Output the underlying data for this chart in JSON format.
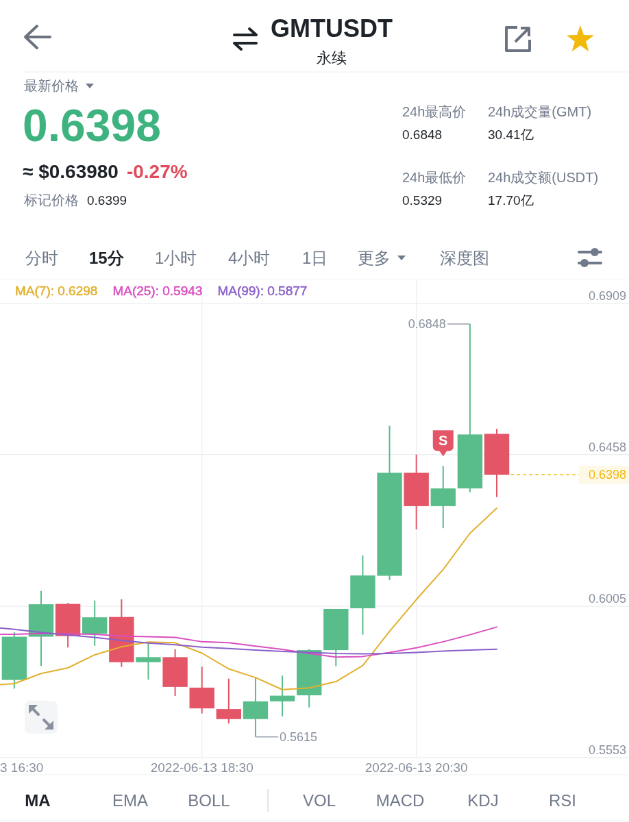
{
  "chart_data": [
    {
      "type": "other",
      "title": "GMTUSDT",
      "subtitle": "永续",
      "annotations": [
        "最新价格",
        "0.6398",
        "≈ $0.63980",
        "-0.27%",
        "标记价格",
        "0.6399",
        "24h最高价",
        "0.6848",
        "24h成交量(GMT)",
        "30.41亿",
        "24h最低价",
        "0.5329",
        "24h成交额(USDT)",
        "17.70亿",
        "分时",
        "15分",
        "1小时",
        "4小时",
        "1日",
        "更多",
        "深度图"
      ]
    },
    {
      "type": "candlestick",
      "x": [
        "2022-06-13T16:45",
        "2022-06-13T17:00",
        "2022-06-13T17:15",
        "2022-06-13T17:30",
        "2022-06-13T17:45",
        "2022-06-13T18:00",
        "2022-06-13T18:15",
        "2022-06-13T18:30",
        "2022-06-13T18:45",
        "2022-06-13T19:00",
        "2022-06-13T19:15",
        "2022-06-13T19:30",
        "2022-06-13T19:45",
        "2022-06-13T20:00",
        "2022-06-13T20:15",
        "2022-06-13T20:30",
        "2022-06-13T20:45",
        "2022-06-13T21:00",
        "2022-06-13T21:15"
      ],
      "ohlc": [
        [
          0.5785,
          0.5928,
          0.5759,
          0.5914
        ],
        [
          0.5914,
          0.6051,
          0.5827,
          0.6011
        ],
        [
          0.6012,
          0.6015,
          0.5882,
          0.5916
        ],
        [
          0.5923,
          0.6022,
          0.5887,
          0.5972
        ],
        [
          0.5973,
          0.6026,
          0.5824,
          0.5838
        ],
        [
          0.5838,
          0.5895,
          0.5786,
          0.5853
        ],
        [
          0.5853,
          0.5877,
          0.5737,
          0.5764
        ],
        [
          0.5762,
          0.5824,
          0.5685,
          0.57
        ],
        [
          0.5698,
          0.5789,
          0.5655,
          0.5668
        ],
        [
          0.5668,
          0.5792,
          0.5615,
          0.5721
        ],
        [
          0.5721,
          0.5798,
          0.5676,
          0.5738
        ],
        [
          0.5739,
          0.5877,
          0.5703,
          0.5874
        ],
        [
          0.5874,
          0.5997,
          0.5826,
          0.5997
        ],
        [
          0.5999,
          0.6157,
          0.592,
          0.6097
        ],
        [
          0.6096,
          0.6544,
          0.6083,
          0.6404
        ],
        [
          0.6404,
          0.6458,
          0.6235,
          0.6304
        ],
        [
          0.6304,
          0.6424,
          0.6238,
          0.6357
        ],
        [
          0.6357,
          0.6848,
          0.6346,
          0.6518
        ],
        [
          0.652,
          0.6535,
          0.6331,
          0.6398
        ]
      ],
      "colors": [
        "#58bd8b",
        "#58bd8b",
        "#e35567",
        "#58bd8b",
        "#e35567",
        "#58bd8b",
        "#e35567",
        "#e35567",
        "#e35567",
        "#58bd8b",
        "#58bd8b",
        "#58bd8b",
        "#58bd8b",
        "#58bd8b",
        "#58bd8b",
        "#e35567",
        "#58bd8b",
        "#58bd8b",
        "#e35567"
      ],
      "series": [
        {
          "name": "MA(7): 0.6298",
          "color": "#e2b02e",
          "type": "line",
          "x": [
            "2022-06-13T16:37",
            "2022-06-13T16:45",
            "2022-06-13T17:00",
            "2022-06-13T17:15",
            "2022-06-13T17:30",
            "2022-06-13T17:45",
            "2022-06-13T18:00",
            "2022-06-13T18:15",
            "2022-06-13T18:30",
            "2022-06-13T18:45",
            "2022-06-13T19:00",
            "2022-06-13T19:15",
            "2022-06-13T19:30",
            "2022-06-13T19:45",
            "2022-06-13T20:00",
            "2022-06-13T20:15",
            "2022-06-13T20:30",
            "2022-06-13T20:45",
            "2022-06-13T21:00",
            "2022-06-13T21:15"
          ],
          "values": [
            0.5771,
            0.5774,
            0.5804,
            0.5821,
            0.586,
            0.5884,
            0.5898,
            0.5896,
            0.5865,
            0.5818,
            0.5792,
            0.5756,
            0.5761,
            0.578,
            0.5828,
            0.593,
            0.6025,
            0.6115,
            0.6223,
            0.6298
          ]
        },
        {
          "name": "MA(25): 0.5943",
          "color": "#d94fbf",
          "type": "line",
          "x": [
            "2022-06-13T16:37",
            "2022-06-13T16:45",
            "2022-06-13T17:00",
            "2022-06-13T17:15",
            "2022-06-13T17:30",
            "2022-06-13T17:45",
            "2022-06-13T18:00",
            "2022-06-13T18:15",
            "2022-06-13T18:30",
            "2022-06-13T18:45",
            "2022-06-13T19:00",
            "2022-06-13T19:15",
            "2022-06-13T19:30",
            "2022-06-13T19:45",
            "2022-06-13T20:00",
            "2022-06-13T20:15",
            "2022-06-13T20:30",
            "2022-06-13T20:45",
            "2022-06-13T21:00",
            "2022-06-13T21:15"
          ],
          "values": [
            0.5921,
            0.5921,
            0.5924,
            0.5923,
            0.5921,
            0.5916,
            0.5914,
            0.5912,
            0.5899,
            0.5896,
            0.5886,
            0.5876,
            0.5864,
            0.5853,
            0.5855,
            0.5867,
            0.5881,
            0.5899,
            0.592,
            0.5943
          ]
        },
        {
          "name": "MA(99): 0.5877",
          "color": "#8a5fc9",
          "type": "line",
          "x": [
            "2022-06-13T16:37",
            "2022-06-13T16:45",
            "2022-06-13T17:00",
            "2022-06-13T17:15",
            "2022-06-13T17:30",
            "2022-06-13T17:45",
            "2022-06-13T18:00",
            "2022-06-13T18:15",
            "2022-06-13T18:30",
            "2022-06-13T18:45",
            "2022-06-13T19:00",
            "2022-06-13T19:15",
            "2022-06-13T19:30",
            "2022-06-13T19:45",
            "2022-06-13T20:00",
            "2022-06-13T20:15",
            "2022-06-13T20:30",
            "2022-06-13T20:45",
            "2022-06-13T21:00",
            "2022-06-13T21:15"
          ],
          "values": [
            0.594,
            0.5936,
            0.5927,
            0.5919,
            0.5912,
            0.5903,
            0.5895,
            0.589,
            0.5883,
            0.5879,
            0.5874,
            0.587,
            0.5867,
            0.5864,
            0.5863,
            0.5864,
            0.5867,
            0.5871,
            0.5874,
            0.5877
          ]
        }
      ],
      "xlim": [
        "2022-06-13T16:37",
        "2022-06-13T22:29"
      ],
      "ylim": [
        0.5553,
        0.6983
      ],
      "xticks": [
        {
          "value": "2022-06-13T18:30",
          "label": "2022-06-13 18:30"
        },
        {
          "value": "2022-06-13T20:30",
          "label": "2022-06-13 20:30"
        }
      ],
      "yticks": [
        0.5553,
        0.6005,
        0.6458,
        0.6909
      ],
      "grid": true,
      "legend": "top left",
      "ref_lines": [
        {
          "axis": "y",
          "value": 0.6398,
          "label": "0.6398",
          "color": "#f0b90b",
          "line_style": "dashed"
        }
      ],
      "annotations": [
        {
          "text": "0.6848",
          "x": "2022-06-13T21:00",
          "y": 0.6848
        },
        {
          "text": "0.5615",
          "x": "2022-06-13T19:00",
          "y": 0.5615
        },
        "S",
        "3 16:30",
        "MA",
        "EMA",
        "BOLL",
        "VOL",
        "MACD",
        "KDJ",
        "RSI"
      ]
    }
  ]
}
